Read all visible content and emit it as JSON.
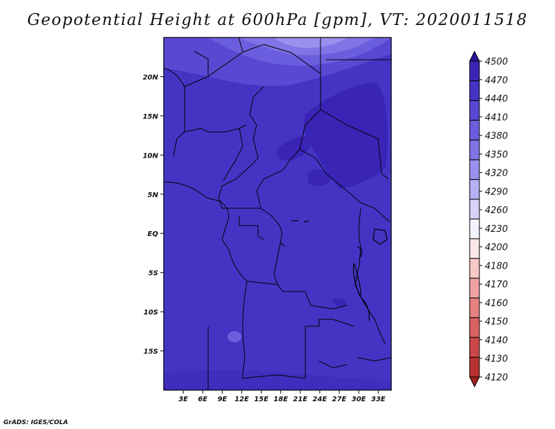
{
  "title": "Geopotential Height at 600hPa [gpm], VT: 2020011518",
  "footer": "GrADS: IGES/COLA",
  "map": {
    "lon_range": [
      0,
      35
    ],
    "lat_range": [
      -20,
      25
    ],
    "lon_ticks": [
      "3E",
      "6E",
      "9E",
      "12E",
      "15E",
      "18E",
      "21E",
      "24E",
      "27E",
      "30E",
      "33E"
    ],
    "lat_ticks": [
      "20N",
      "15N",
      "10N",
      "5N",
      "EQ",
      "5S",
      "10S",
      "15S"
    ],
    "dominant_fill": "#4534c4"
  },
  "colorbar": {
    "levels": [
      "4500",
      "4470",
      "4440",
      "4410",
      "4380",
      "4350",
      "4320",
      "4290",
      "4260",
      "4230",
      "4200",
      "4180",
      "4170",
      "4160",
      "4150",
      "4140",
      "4130",
      "4120"
    ],
    "colors": [
      "#2a1496",
      "#3a24b6",
      "#4534c4",
      "#5848d2",
      "#6b5ede",
      "#8174e6",
      "#9a90ee",
      "#b7b0f4",
      "#d6d2fa",
      "#f4f2ff",
      "#fde8e8",
      "#f8c8c8",
      "#f0a2a2",
      "#e48080",
      "#d86262",
      "#cc4848",
      "#b83232",
      "#a02020"
    ]
  }
}
